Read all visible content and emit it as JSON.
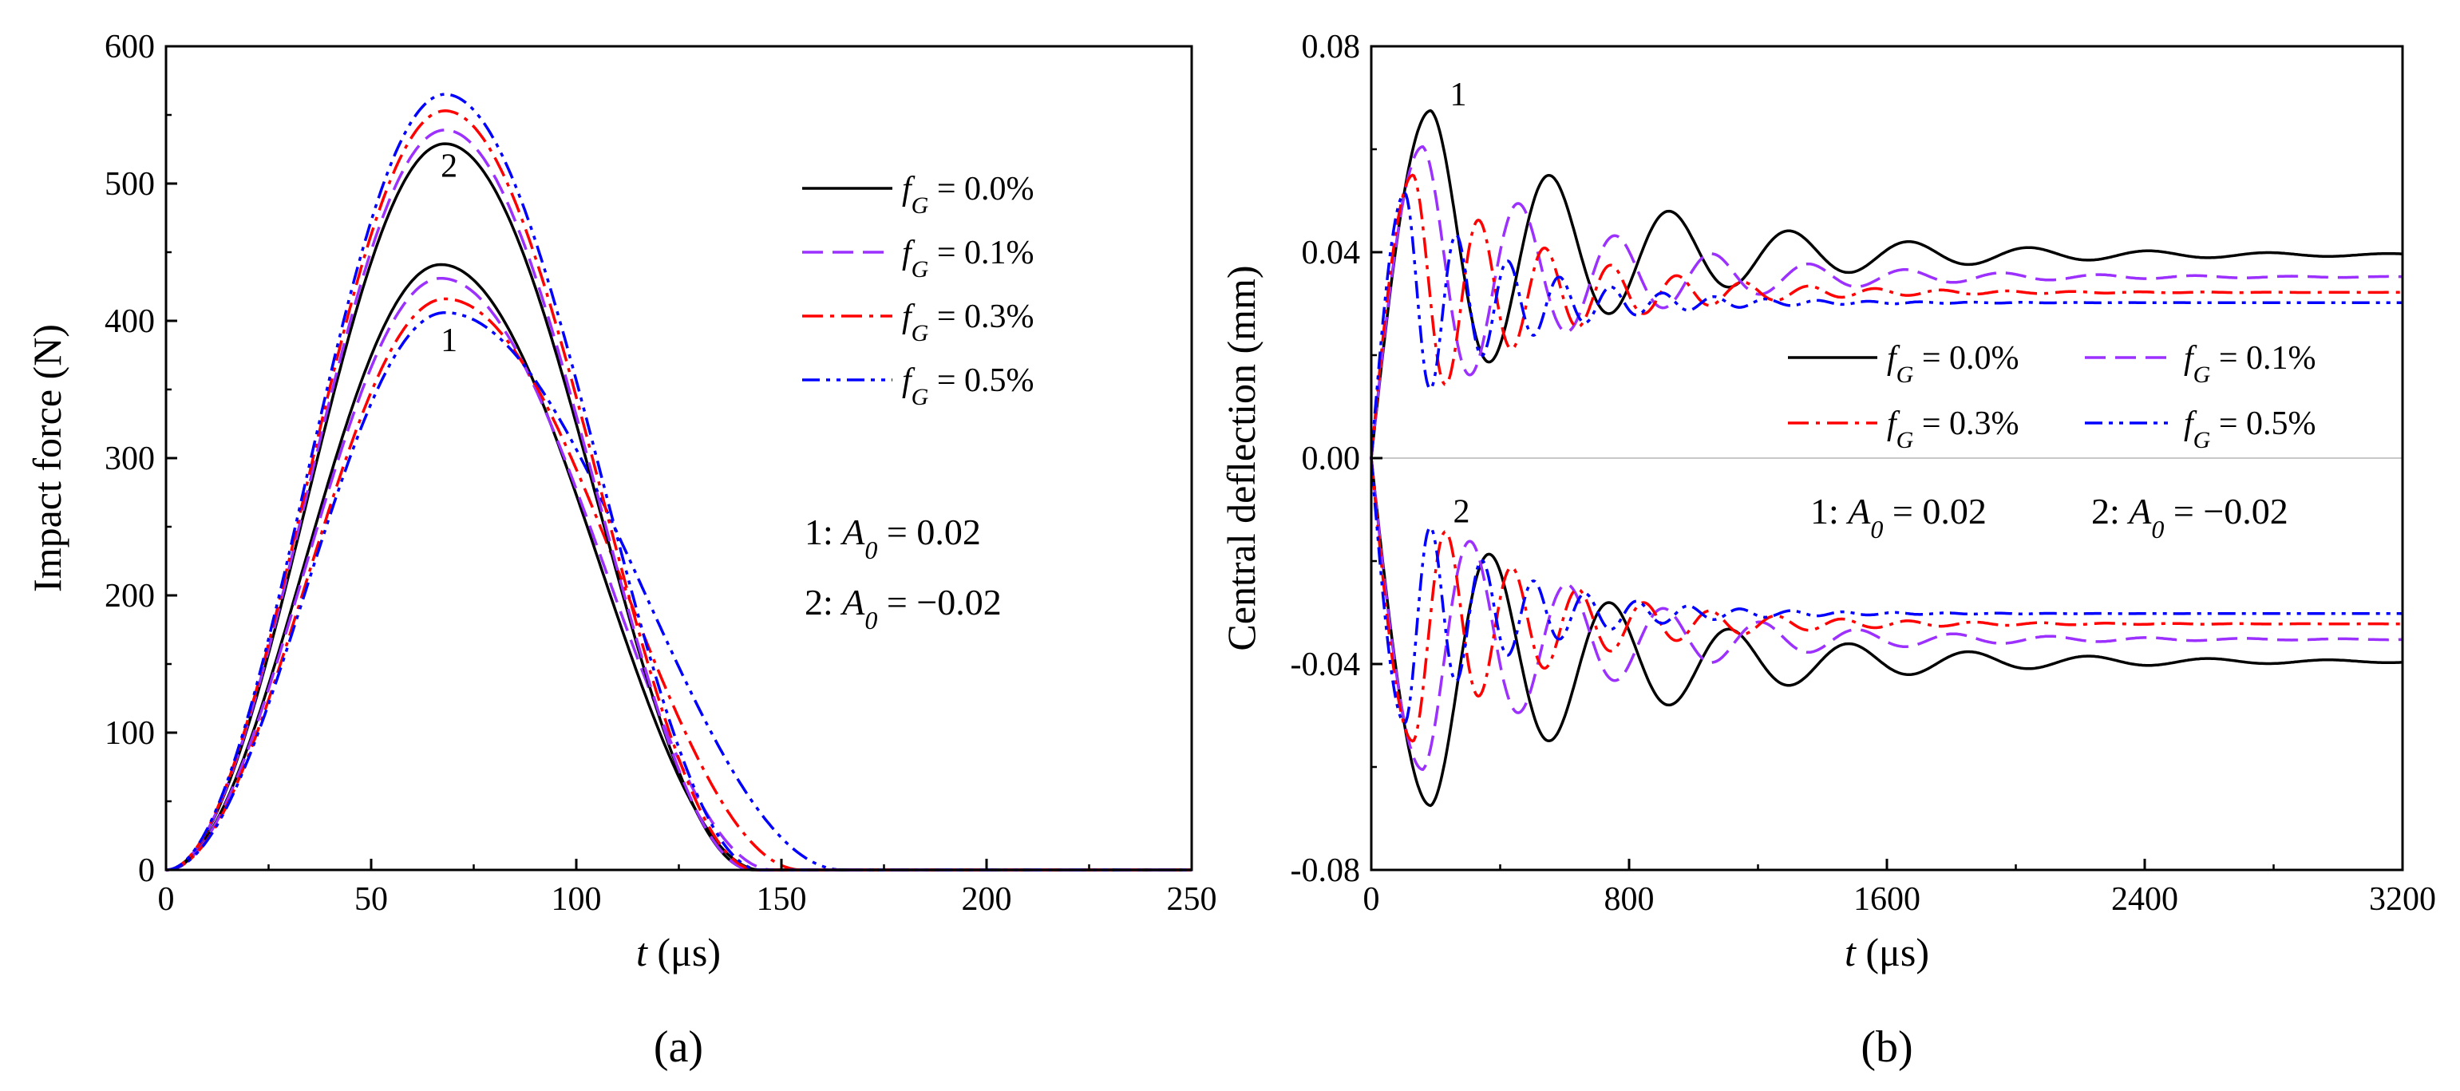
{
  "chart_data": [
    {
      "type": "line",
      "panel_label": "(a)",
      "xlabel_symbol": "t",
      "xlabel_unit": "(μs)",
      "ylabel": "Impact force (N)",
      "xlim": [
        0,
        250
      ],
      "ylim": [
        0,
        600
      ],
      "xticks": [
        0,
        50,
        100,
        150,
        200,
        250
      ],
      "yticks": [
        0,
        100,
        200,
        300,
        400,
        500,
        600
      ],
      "legend": [
        {
          "prefix": "f",
          "sub": "G",
          "text": " = 0.0%",
          "color": "#000000",
          "dash": "solid"
        },
        {
          "prefix": "f",
          "sub": "G",
          "text": " = 0.1%",
          "color": "#9b30ff",
          "dash": "dash"
        },
        {
          "prefix": "f",
          "sub": "G",
          "text": " = 0.3%",
          "color": "#ff0000",
          "dash": "dashdot"
        },
        {
          "prefix": "f",
          "sub": "G",
          "text": " = 0.5%",
          "color": "#0000ff",
          "dash": "dashdotdot"
        }
      ],
      "annotations": [
        {
          "num": "1: ",
          "sym": "A",
          "sub": "0",
          "val": " = 0.02"
        },
        {
          "num": "2: ",
          "sym": "A",
          "sub": "0",
          "val": " = −0.02"
        }
      ],
      "curve_labels": [
        {
          "text": "1",
          "x": 69,
          "y": 378
        },
        {
          "text": "2",
          "x": 69,
          "y": 505
        }
      ],
      "series": [
        {
          "name": "1, fG = 0.0%",
          "peak": 441,
          "tpeak": 67,
          "tend": 145
        },
        {
          "name": "1, fG = 0.1%",
          "peak": 431,
          "tpeak": 67,
          "tend": 148
        },
        {
          "name": "1, fG = 0.3%",
          "peak": 416,
          "tpeak": 68,
          "tend": 155
        },
        {
          "name": "1, fG = 0.5%",
          "peak": 406,
          "tpeak": 68,
          "tend": 165
        },
        {
          "name": "2, fG = 0.0%",
          "peak": 529,
          "tpeak": 68,
          "tend": 143
        },
        {
          "name": "2, fG = 0.1%",
          "peak": 539,
          "tpeak": 68,
          "tend": 143
        },
        {
          "name": "2, fG = 0.3%",
          "peak": 553,
          "tpeak": 68,
          "tend": 144
        },
        {
          "name": "2, fG = 0.5%",
          "peak": 565,
          "tpeak": 68,
          "tend": 145
        }
      ]
    },
    {
      "type": "line",
      "panel_label": "(b)",
      "xlabel_symbol": "t",
      "xlabel_unit": "(μs)",
      "ylabel": "Central deflection (mm)",
      "xlim": [
        0,
        3200
      ],
      "ylim": [
        -0.08,
        0.08
      ],
      "xticks": [
        0,
        800,
        1600,
        2400,
        3200
      ],
      "yticks": [
        "-0.08",
        "-0.04",
        "0.00",
        "0.04",
        "0.08"
      ],
      "legend": [
        {
          "prefix": "f",
          "sub": "G",
          "text": " = 0.0%",
          "color": "#000000",
          "dash": "solid"
        },
        {
          "prefix": "f",
          "sub": "G",
          "text": " = 0.1%",
          "color": "#9b30ff",
          "dash": "dash"
        },
        {
          "prefix": "f",
          "sub": "G",
          "text": " = 0.3%",
          "color": "#ff0000",
          "dash": "dashdot"
        },
        {
          "prefix": "f",
          "sub": "G",
          "text": " = 0.5%",
          "color": "#0000ff",
          "dash": "dashdotdot"
        }
      ],
      "annotations": [
        {
          "num": "1: ",
          "sym": "A",
          "sub": "0",
          "val": " = 0.02"
        },
        {
          "num": "2: ",
          "sym": "A",
          "sub": "0",
          "val": " = −0.02"
        }
      ],
      "curve_labels": [
        {
          "text": "1",
          "x": 270,
          "y": 0.0685
        },
        {
          "text": "2",
          "x": 280,
          "y": -0.0125
        }
      ],
      "series": [
        {
          "name": "fG = 0.0%",
          "steady": 0.0395,
          "peak": 0.0675,
          "tpeak": 185,
          "period": 372,
          "decay": 620
        },
        {
          "name": "fG = 0.1%",
          "steady": 0.0352,
          "peak": 0.0605,
          "tpeak": 160,
          "period": 300,
          "decay": 520
        },
        {
          "name": "fG = 0.3%",
          "steady": 0.0322,
          "peak": 0.055,
          "tpeak": 130,
          "period": 205,
          "decay": 420
        },
        {
          "name": "fG = 0.5%",
          "steady": 0.0302,
          "peak": 0.0515,
          "tpeak": 105,
          "period": 160,
          "decay": 330
        }
      ]
    }
  ]
}
